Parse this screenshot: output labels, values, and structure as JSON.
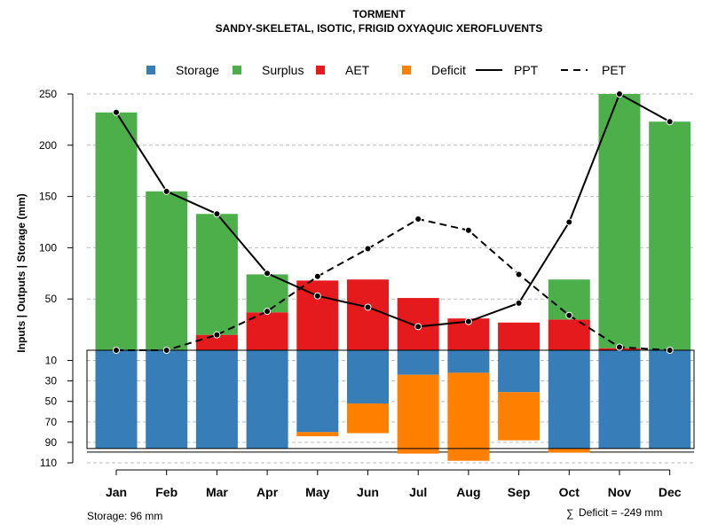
{
  "chart_data": {
    "type": "bar",
    "title": "TORMENT",
    "subtitle": "SANDY-SKELETAL, ISOTIC, FRIGID OXYAQUIC XEROFLUVENTS",
    "ylabel": "Inputs | Outputs | Storage    (mm)",
    "categories": [
      "Jan",
      "Feb",
      "Mar",
      "Apr",
      "May",
      "Jun",
      "Jul",
      "Aug",
      "Sep",
      "Oct",
      "Nov",
      "Dec"
    ],
    "upper_ylim": [
      0,
      250
    ],
    "upper_ticks": [
      "50",
      "100",
      "150",
      "200",
      "250"
    ],
    "upper_tick_values": [
      50,
      100,
      150,
      200,
      250
    ],
    "lower_ylim": [
      0,
      110
    ],
    "lower_ticks": [
      "10",
      "30",
      "50",
      "70",
      "90",
      "110"
    ],
    "lower_tick_values": [
      10,
      30,
      50,
      70,
      90,
      110
    ],
    "series": [
      {
        "name": "AET",
        "color": "#E41A1C",
        "values": [
          0,
          0,
          15,
          37,
          68,
          69,
          51,
          31,
          27,
          30,
          2,
          0
        ]
      },
      {
        "name": "Surplus",
        "color": "#4DAF4A",
        "values": [
          232,
          155,
          118,
          37,
          0,
          0,
          0,
          0,
          0,
          39,
          248,
          223
        ]
      },
      {
        "name": "Storage",
        "color": "#377EB8",
        "values": [
          96,
          96,
          96,
          96,
          80,
          52,
          24,
          22,
          41,
          96,
          96,
          96
        ]
      },
      {
        "name": "Deficit",
        "color": "#FF7F00",
        "values": [
          0,
          0,
          0,
          0,
          4,
          29,
          77,
          86,
          47,
          4,
          0,
          0
        ]
      },
      {
        "name": "PPT",
        "color": "#000000",
        "values": [
          232,
          155,
          133,
          75,
          53,
          42,
          23,
          28,
          46,
          125,
          250,
          223
        ]
      },
      {
        "name": "PET",
        "color": "#000000",
        "values": [
          0,
          0,
          15,
          38,
          72,
          99,
          128,
          117,
          74,
          34,
          3,
          0
        ]
      }
    ],
    "legend": [
      "Storage",
      "Surplus",
      "AET",
      "Deficit",
      "PPT",
      "PET"
    ],
    "legend_position": "top",
    "storage_capacity": 96,
    "storage_note": "Storage: 96 mm",
    "deficit_note": "Deficit = -249 mm",
    "sum_symbol": "∑"
  }
}
